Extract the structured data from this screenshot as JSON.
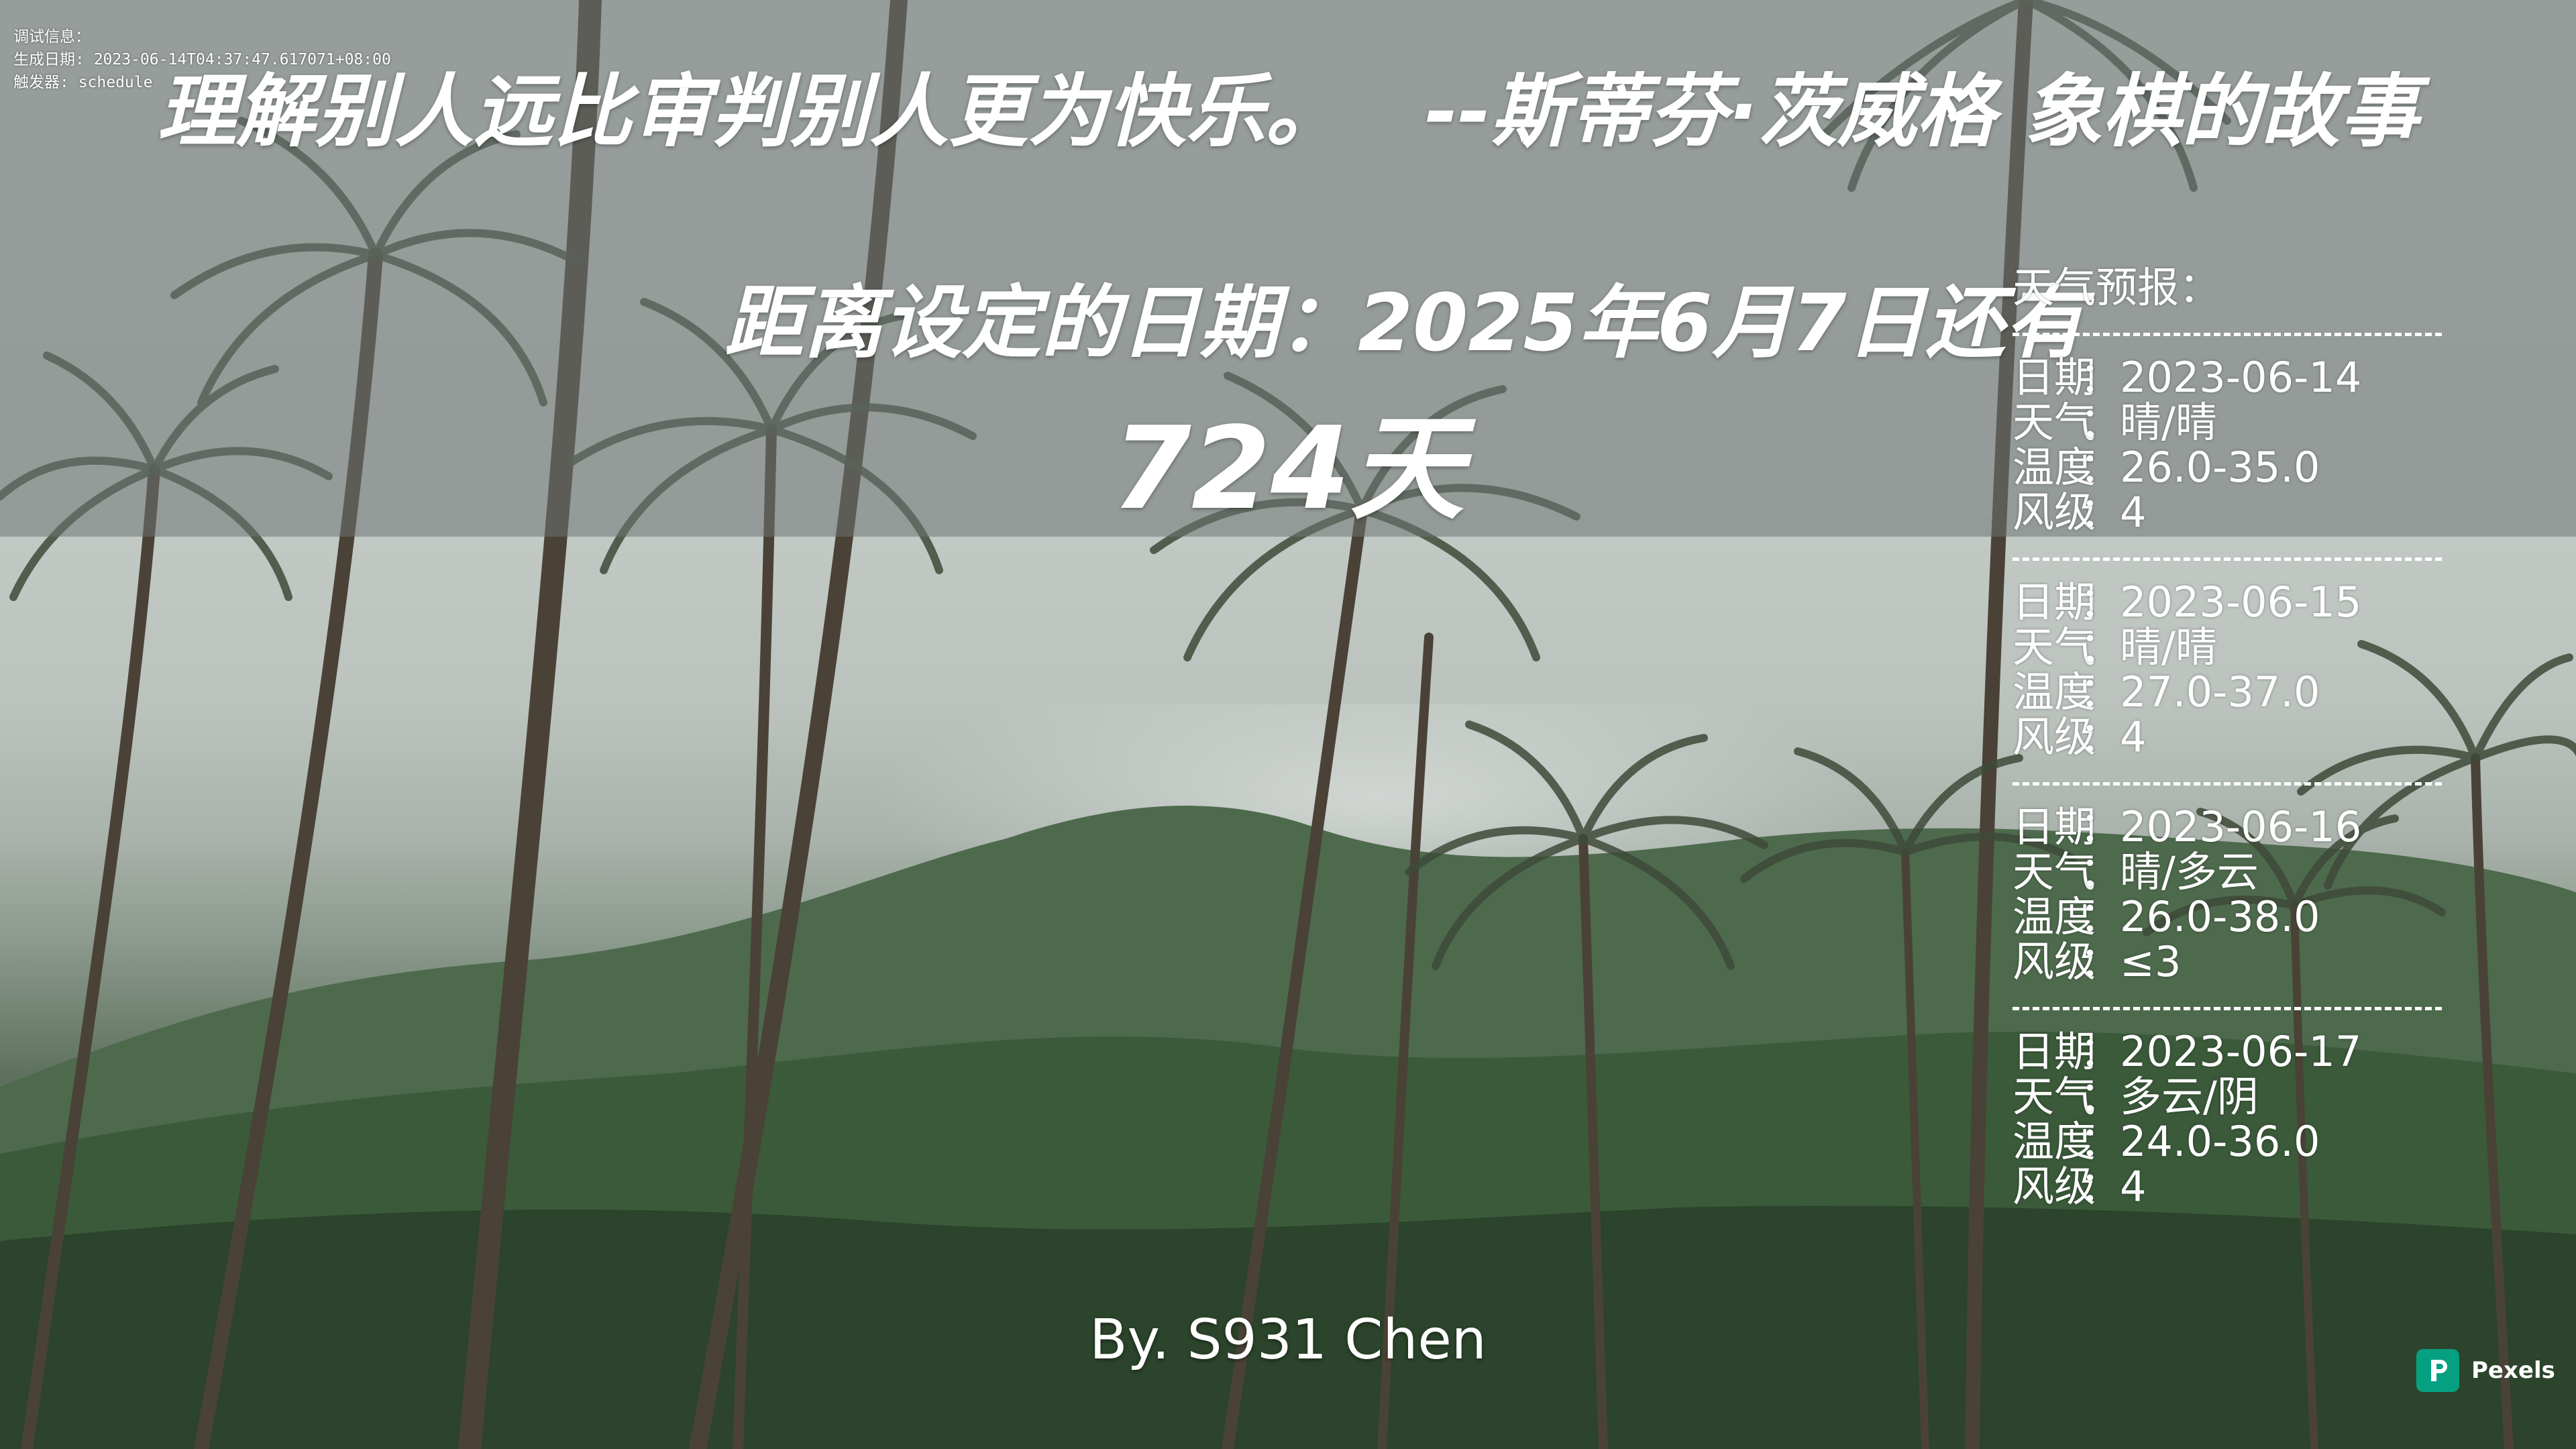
{
  "debug": {
    "line1": "调试信息：",
    "line2": "生成日期: 2023-06-14T04:37:47.617071+08:00",
    "line3": "触发器: schedule"
  },
  "quote": {
    "text": "理解别人远比审判别人更为快乐。",
    "source": "--斯蒂芬·茨威格 象棋的故事"
  },
  "countdown": {
    "line": "距离设定的日期：2025年6月7日还有",
    "days": "724天"
  },
  "weather": {
    "title": "天气预报：",
    "divider": "------------------------------",
    "labels": {
      "date": "日期",
      "weather": "天气",
      "temp": "温度",
      "wind": "风级",
      "colon": "："
    },
    "days": [
      {
        "date": "2023-06-14",
        "weather": "晴/晴",
        "temp": "26.0-35.0",
        "wind": "4"
      },
      {
        "date": "2023-06-15",
        "weather": "晴/晴",
        "temp": "27.0-37.0",
        "wind": "4"
      },
      {
        "date": "2023-06-16",
        "weather": "晴/多云",
        "temp": "26.0-38.0",
        "wind": "≤3"
      },
      {
        "date": "2023-06-17",
        "weather": "多云/阴",
        "temp": "24.0-36.0",
        "wind": "4"
      }
    ]
  },
  "footer": {
    "author": "By. S931 Chen",
    "credit": "Pexels"
  },
  "colors": {
    "pexels_green": "#05a081",
    "text": "#ffffff"
  }
}
